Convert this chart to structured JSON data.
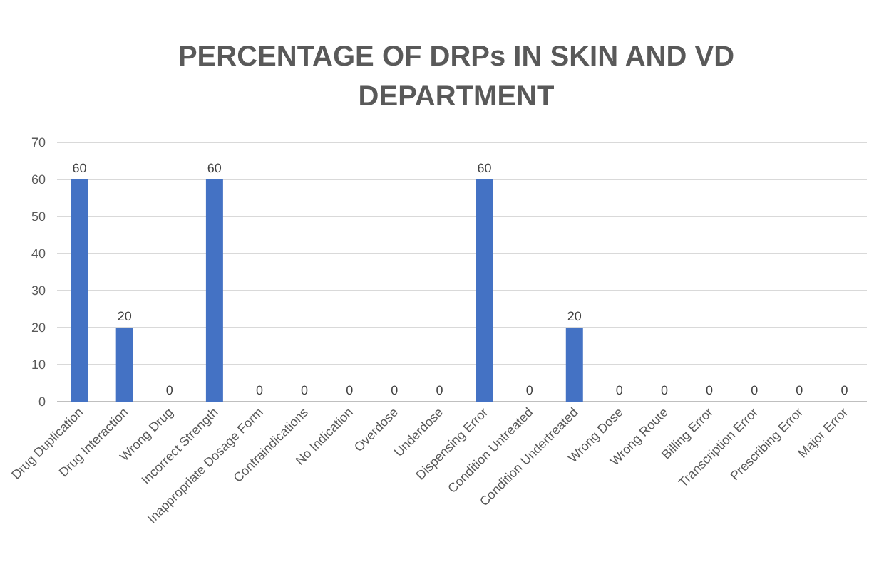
{
  "chart_data": {
    "type": "bar",
    "title": "PERCENTAGE OF DRPs IN SKIN AND VD DEPARTMENT",
    "categories": [
      "Drug Duplication",
      "Drug Interaction",
      "Wrong Drug",
      "Incorrect Strength",
      "Inappropriate Dosage Form",
      "Contraindications",
      "No Indication",
      "Overdose",
      "Underdose",
      "Dispensing Error",
      "Condition Untreated",
      "Condition Undertreated",
      "Wrong Dose",
      "Wrong Route",
      "Billing Error",
      "Transcription Error",
      "Prescribing Error",
      "Major Error"
    ],
    "values": [
      60,
      20,
      0,
      60,
      0,
      0,
      0,
      0,
      0,
      60,
      0,
      20,
      0,
      0,
      0,
      0,
      0,
      0
    ],
    "color": "#4472c4",
    "ylim": [
      0,
      70
    ],
    "yticks": [
      0,
      10,
      20,
      30,
      40,
      50,
      60,
      70
    ],
    "grid": "y",
    "data_labels": true
  }
}
